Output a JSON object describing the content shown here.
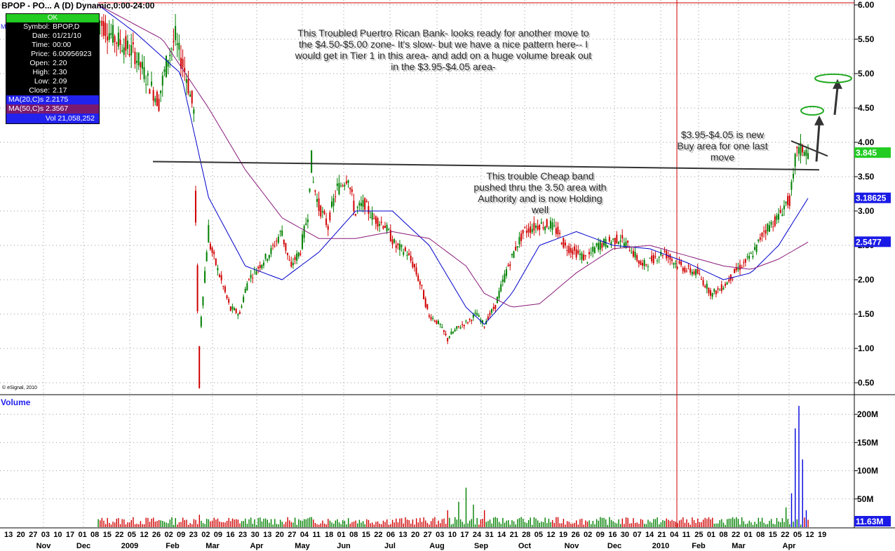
{
  "header": {
    "title": "BPOP - PO... A (D) Dynamic,0:00-24:00",
    "marker": "M"
  },
  "info_panel": {
    "status": "OK",
    "rows": [
      {
        "key": "Symbol:",
        "value": "BPOP,D"
      },
      {
        "key": "Date:",
        "value": "01/21/10"
      },
      {
        "key": "Time:",
        "value": "00:00"
      },
      {
        "key": "Price:",
        "value": "6.00956923"
      },
      {
        "key": "Open:",
        "value": "2.20"
      },
      {
        "key": "High:",
        "value": "2.30"
      },
      {
        "key": "Low:",
        "value": "2.09"
      },
      {
        "key": "Close:",
        "value": "2.17"
      }
    ],
    "ma20": "MA(20,C)s 2.2175",
    "ma50": "MA(50,C)s 2.3567",
    "volume": "Vol 21,058,252"
  },
  "copyright": "© eSignal, 2010",
  "volume_label": "Volume",
  "colors": {
    "up": "#008000",
    "down": "#d00000",
    "ma20": "#0000cc",
    "ma50": "#8a1a7a",
    "last_price_bg": "#22cc22",
    "ma20_bg": "#1a1ae6",
    "ma50_bg": "#1a1ae6",
    "target": "#22aa22"
  },
  "chart_data": {
    "type": "candlestick",
    "symbol": "BPOP",
    "y_axis": {
      "ticks": [
        "6.00",
        "5.50",
        "5.00",
        "4.50",
        "4.00",
        "3.50",
        "3.00",
        "2.50",
        "2.00",
        "1.50",
        "1.00",
        "0.50"
      ],
      "range": [
        0.3,
        6.05
      ]
    },
    "price_markers": {
      "last": "3.845",
      "ma20": "3.18625",
      "ma50": "2.5477"
    },
    "volume_axis": {
      "ticks": [
        "200M",
        "150M",
        "100M",
        "50M"
      ],
      "last": "11.63M",
      "range": [
        0,
        220
      ]
    },
    "x_day_labels": [
      "13",
      "20",
      "27",
      "03",
      "10",
      "17",
      "01",
      "08",
      "15",
      "22",
      "05",
      "12",
      "26",
      "02",
      "09",
      "23",
      "02",
      "09",
      "16",
      "23",
      "30",
      "13",
      "20",
      "27",
      "04",
      "11",
      "18",
      "01",
      "08",
      "15",
      "22",
      "06",
      "13",
      "20",
      "27",
      "03",
      "10",
      "17",
      "24",
      "31",
      "14",
      "21",
      "28",
      "05",
      "12",
      "19",
      "26",
      "02",
      "09",
      "16",
      "30",
      "07",
      "14",
      "21",
      "04",
      "11",
      "25",
      "01",
      "08",
      "22",
      "01",
      "08",
      "15",
      "22",
      "05",
      "12",
      "19"
    ],
    "x_month_labels": [
      "Nov",
      "Dec",
      "2009",
      "Feb",
      "Mar",
      "Apr",
      "May",
      "Jun",
      "Jul",
      "Aug",
      "Sep",
      "Oct",
      "Nov",
      "Dec",
      "2010",
      "Feb",
      "Mar",
      "Apr"
    ],
    "price_path": [
      [
        0,
        5.8
      ],
      [
        10,
        5.5
      ],
      [
        20,
        5.3
      ],
      [
        33,
        4.6
      ],
      [
        38,
        5.2
      ],
      [
        42,
        5.5
      ],
      [
        48,
        5.0
      ],
      [
        52,
        4.5
      ],
      [
        55,
        1.0
      ],
      [
        60,
        2.6
      ],
      [
        66,
        2.1
      ],
      [
        72,
        1.6
      ],
      [
        77,
        1.5
      ],
      [
        82,
        2.0
      ],
      [
        88,
        2.2
      ],
      [
        94,
        2.4
      ],
      [
        100,
        2.7
      ],
      [
        105,
        2.2
      ],
      [
        110,
        2.4
      ],
      [
        114,
        2.9
      ],
      [
        116,
        3.6
      ],
      [
        120,
        3.1
      ],
      [
        125,
        2.8
      ],
      [
        130,
        3.3
      ],
      [
        136,
        3.5
      ],
      [
        140,
        3.0
      ],
      [
        145,
        3.1
      ],
      [
        150,
        2.9
      ],
      [
        156,
        2.8
      ],
      [
        162,
        2.5
      ],
      [
        168,
        2.4
      ],
      [
        172,
        2.2
      ],
      [
        176,
        1.9
      ],
      [
        180,
        1.5
      ],
      [
        186,
        1.35
      ],
      [
        190,
        1.15
      ],
      [
        196,
        1.3
      ],
      [
        202,
        1.4
      ],
      [
        206,
        1.5
      ],
      [
        210,
        1.35
      ],
      [
        216,
        1.6
      ],
      [
        222,
        2.1
      ],
      [
        228,
        2.5
      ],
      [
        232,
        2.7
      ],
      [
        236,
        2.75
      ],
      [
        240,
        2.8
      ],
      [
        246,
        2.8
      ],
      [
        250,
        2.7
      ],
      [
        254,
        2.5
      ],
      [
        260,
        2.4
      ],
      [
        266,
        2.3
      ],
      [
        272,
        2.5
      ],
      [
        278,
        2.55
      ],
      [
        284,
        2.6
      ],
      [
        290,
        2.45
      ],
      [
        296,
        2.2
      ],
      [
        302,
        2.3
      ],
      [
        308,
        2.4
      ],
      [
        314,
        2.25
      ],
      [
        320,
        2.15
      ],
      [
        326,
        2.1
      ],
      [
        330,
        1.95
      ],
      [
        334,
        1.8
      ],
      [
        338,
        1.85
      ],
      [
        342,
        1.95
      ],
      [
        346,
        2.1
      ],
      [
        350,
        2.2
      ],
      [
        354,
        2.3
      ],
      [
        358,
        2.45
      ],
      [
        362,
        2.7
      ],
      [
        366,
        2.8
      ],
      [
        370,
        2.9
      ],
      [
        374,
        3.1
      ],
      [
        376,
        3.15
      ],
      [
        378,
        3.4
      ],
      [
        380,
        3.85
      ],
      [
        383,
        3.9
      ],
      [
        386,
        3.845
      ]
    ],
    "ma20_path": [
      [
        0,
        6.0
      ],
      [
        20,
        5.6
      ],
      [
        45,
        5.0
      ],
      [
        60,
        3.2
      ],
      [
        80,
        2.2
      ],
      [
        100,
        2.0
      ],
      [
        120,
        2.4
      ],
      [
        140,
        3.0
      ],
      [
        160,
        3.0
      ],
      [
        180,
        2.5
      ],
      [
        200,
        1.6
      ],
      [
        210,
        1.35
      ],
      [
        225,
        1.8
      ],
      [
        240,
        2.5
      ],
      [
        260,
        2.7
      ],
      [
        280,
        2.5
      ],
      [
        300,
        2.45
      ],
      [
        320,
        2.25
      ],
      [
        340,
        2.0
      ],
      [
        355,
        2.1
      ],
      [
        370,
        2.5
      ],
      [
        386,
        3.18625
      ]
    ],
    "ma50_path": [
      [
        0,
        6.0
      ],
      [
        35,
        5.5
      ],
      [
        60,
        4.5
      ],
      [
        80,
        3.6
      ],
      [
        100,
        2.9
      ],
      [
        120,
        2.6
      ],
      [
        140,
        2.6
      ],
      [
        160,
        2.7
      ],
      [
        180,
        2.6
      ],
      [
        200,
        2.2
      ],
      [
        210,
        1.8
      ],
      [
        225,
        1.6
      ],
      [
        240,
        1.65
      ],
      [
        260,
        2.1
      ],
      [
        280,
        2.45
      ],
      [
        300,
        2.5
      ],
      [
        320,
        2.35
      ],
      [
        340,
        2.2
      ],
      [
        355,
        2.15
      ],
      [
        370,
        2.3
      ],
      [
        386,
        2.5477
      ]
    ],
    "volume_bars": [
      [
        55,
        22
      ],
      [
        60,
        14
      ],
      [
        66,
        10
      ],
      [
        110,
        12
      ],
      [
        116,
        18
      ],
      [
        130,
        14
      ],
      [
        136,
        16
      ],
      [
        190,
        30
      ],
      [
        196,
        45
      ],
      [
        200,
        70
      ],
      [
        204,
        40
      ],
      [
        210,
        30
      ],
      [
        230,
        18
      ],
      [
        260,
        12
      ],
      [
        300,
        10
      ],
      [
        340,
        8
      ],
      [
        374,
        35
      ],
      [
        377,
        60
      ],
      [
        379,
        175
      ],
      [
        381,
        215
      ],
      [
        383,
        120
      ],
      [
        385,
        30
      ]
    ],
    "annotations": [
      {
        "text_lines": [
          "This Troubled Puertro Rican Bank- looks ready for another move to",
          "the $4.50-$5.00 zone- It's slow- but we have a nice pattern here-- I",
          "would get in Tier 1 in this area- and add on a huge volume break out",
          "in the $3.95-$4.05 area-"
        ]
      },
      {
        "text_lines": [
          "This trouble Cheap band",
          "pushed thru the 3.50 area with",
          "Authority and is now Holding",
          "well"
        ]
      },
      {
        "text_lines": [
          "$3.95-$4.05 is new",
          "Buy area for one last",
          "move"
        ]
      }
    ],
    "resistance_level": 3.62,
    "targets": [
      4.45,
      4.95
    ]
  }
}
